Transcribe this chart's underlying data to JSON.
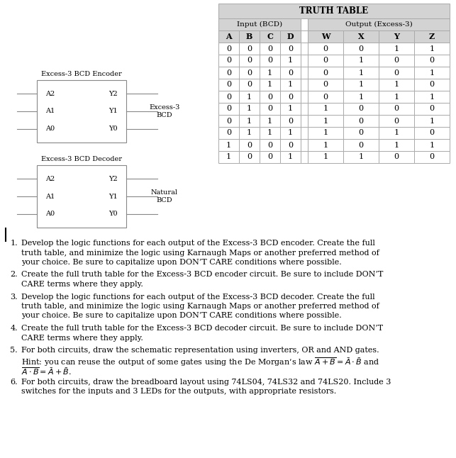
{
  "title": "TRUTH TABLE",
  "input_header": "Input (BCD)",
  "output_header": "Output (Excess-3)",
  "col_headers": [
    "A",
    "B",
    "C",
    "D",
    "W",
    "X",
    "Y",
    "Z"
  ],
  "rows": [
    [
      0,
      0,
      0,
      0,
      0,
      0,
      1,
      1
    ],
    [
      0,
      0,
      0,
      1,
      0,
      1,
      0,
      0
    ],
    [
      0,
      0,
      1,
      0,
      0,
      1,
      0,
      1
    ],
    [
      0,
      0,
      1,
      1,
      0,
      1,
      1,
      0
    ],
    [
      0,
      1,
      0,
      0,
      0,
      1,
      1,
      1
    ],
    [
      0,
      1,
      0,
      1,
      1,
      0,
      0,
      0
    ],
    [
      0,
      1,
      1,
      0,
      1,
      0,
      0,
      1
    ],
    [
      0,
      1,
      1,
      1,
      1,
      0,
      1,
      0
    ],
    [
      1,
      0,
      0,
      0,
      1,
      0,
      1,
      1
    ],
    [
      1,
      0,
      0,
      1,
      1,
      1,
      0,
      0
    ]
  ],
  "encoder_label": "Excess-3 BCD Encoder",
  "encoder_inputs": [
    "A2",
    "A1",
    "A0"
  ],
  "encoder_outputs": [
    "Y2",
    "Y1",
    "Y0"
  ],
  "encoder_out_label": "Excess-3\nBCD",
  "decoder_label": "Excess-3 BCD Decoder",
  "decoder_inputs": [
    "A2",
    "A1",
    "A0"
  ],
  "decoder_outputs": [
    "Y2",
    "Y1",
    "Y0"
  ],
  "decoder_out_label": "Natural\nBCD",
  "bg_color": "#ffffff",
  "table_header_bg": "#d3d3d3",
  "table_border": "#aaaaaa",
  "text_color": "#000000",
  "numbered_items": [
    [
      "Develop the logic functions for each output of the Excess-3 BCD encoder. Create the full truth table, and minimize the logic using Karnaugh Maps or another preferred method of your choice. Be sure to capitalize upon DON’T CARE conditions where possible."
    ],
    [
      "Create the full truth table for the Excess-3 BCD encoder circuit. Be sure to include DON’T CARE terms where they apply."
    ],
    [
      "Develop the logic functions for each output of the Excess-3 BCD decoder. Create the full truth table, and minimize the logic using Karnaugh Maps or another preferred method of your choice. Be sure to capitalize upon DON’T CARE conditions where possible."
    ],
    [
      "Create the full truth table for the Excess-3 BCD decoder circuit. Be sure to include DON’T CARE terms where they apply."
    ],
    [
      "For both circuits, draw the schematic representation using inverters, OR and AND gates. Hint: you can reuse the output of some gates using the De Morgan’s law and equations."
    ],
    [
      "For both circuits, draw the breadboard layout using 74LS04, 74LS32 and 74LS20. Include 3 switches for the inputs and 3 LEDs for the outputs, with appropriate resistors."
    ]
  ],
  "fig_w": 6.43,
  "fig_h": 6.46,
  "dpi": 100
}
